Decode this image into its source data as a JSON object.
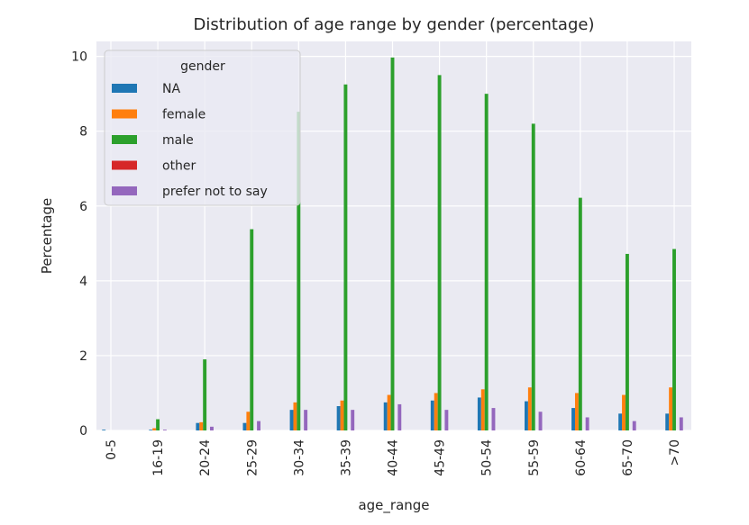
{
  "chart_data": {
    "type": "bar",
    "title": "Distribution of age range by gender (percentage)",
    "xlabel": "age_range",
    "ylabel": "Percentage",
    "ylim": [
      0,
      10.4
    ],
    "yticks": [
      0,
      2,
      4,
      6,
      8,
      10
    ],
    "grid": true,
    "legend_title": "gender",
    "legend_position": "top-left",
    "categories": [
      "0-5",
      "16-19",
      "20-24",
      "25-29",
      "30-34",
      "35-39",
      "40-44",
      "45-49",
      "50-54",
      "55-59",
      "60-64",
      "65-70",
      ">70"
    ],
    "series": [
      {
        "name": "NA",
        "color": "#1f77b4",
        "values": [
          0.02,
          0.02,
          0.2,
          0.2,
          0.55,
          0.65,
          0.75,
          0.8,
          0.88,
          0.78,
          0.6,
          0.45,
          0.45
        ]
      },
      {
        "name": "female",
        "color": "#ff7f0e",
        "values": [
          0.0,
          0.06,
          0.22,
          0.5,
          0.75,
          0.8,
          0.95,
          1.0,
          1.1,
          1.15,
          1.0,
          0.95,
          1.15
        ]
      },
      {
        "name": "male",
        "color": "#2ca02c",
        "values": [
          0.0,
          0.3,
          1.9,
          5.38,
          8.52,
          9.25,
          9.97,
          9.5,
          9.0,
          8.2,
          6.22,
          4.72,
          4.85
        ]
      },
      {
        "name": "other",
        "color": "#d62728",
        "values": [
          0.0,
          0.0,
          0.0,
          0.0,
          0.0,
          0.0,
          0.0,
          0.0,
          0.0,
          0.0,
          0.0,
          0.0,
          0.0
        ]
      },
      {
        "name": "prefer not to say",
        "color": "#9467bd",
        "values": [
          0.0,
          0.02,
          0.1,
          0.25,
          0.55,
          0.55,
          0.7,
          0.55,
          0.6,
          0.5,
          0.35,
          0.25,
          0.35
        ]
      }
    ]
  }
}
